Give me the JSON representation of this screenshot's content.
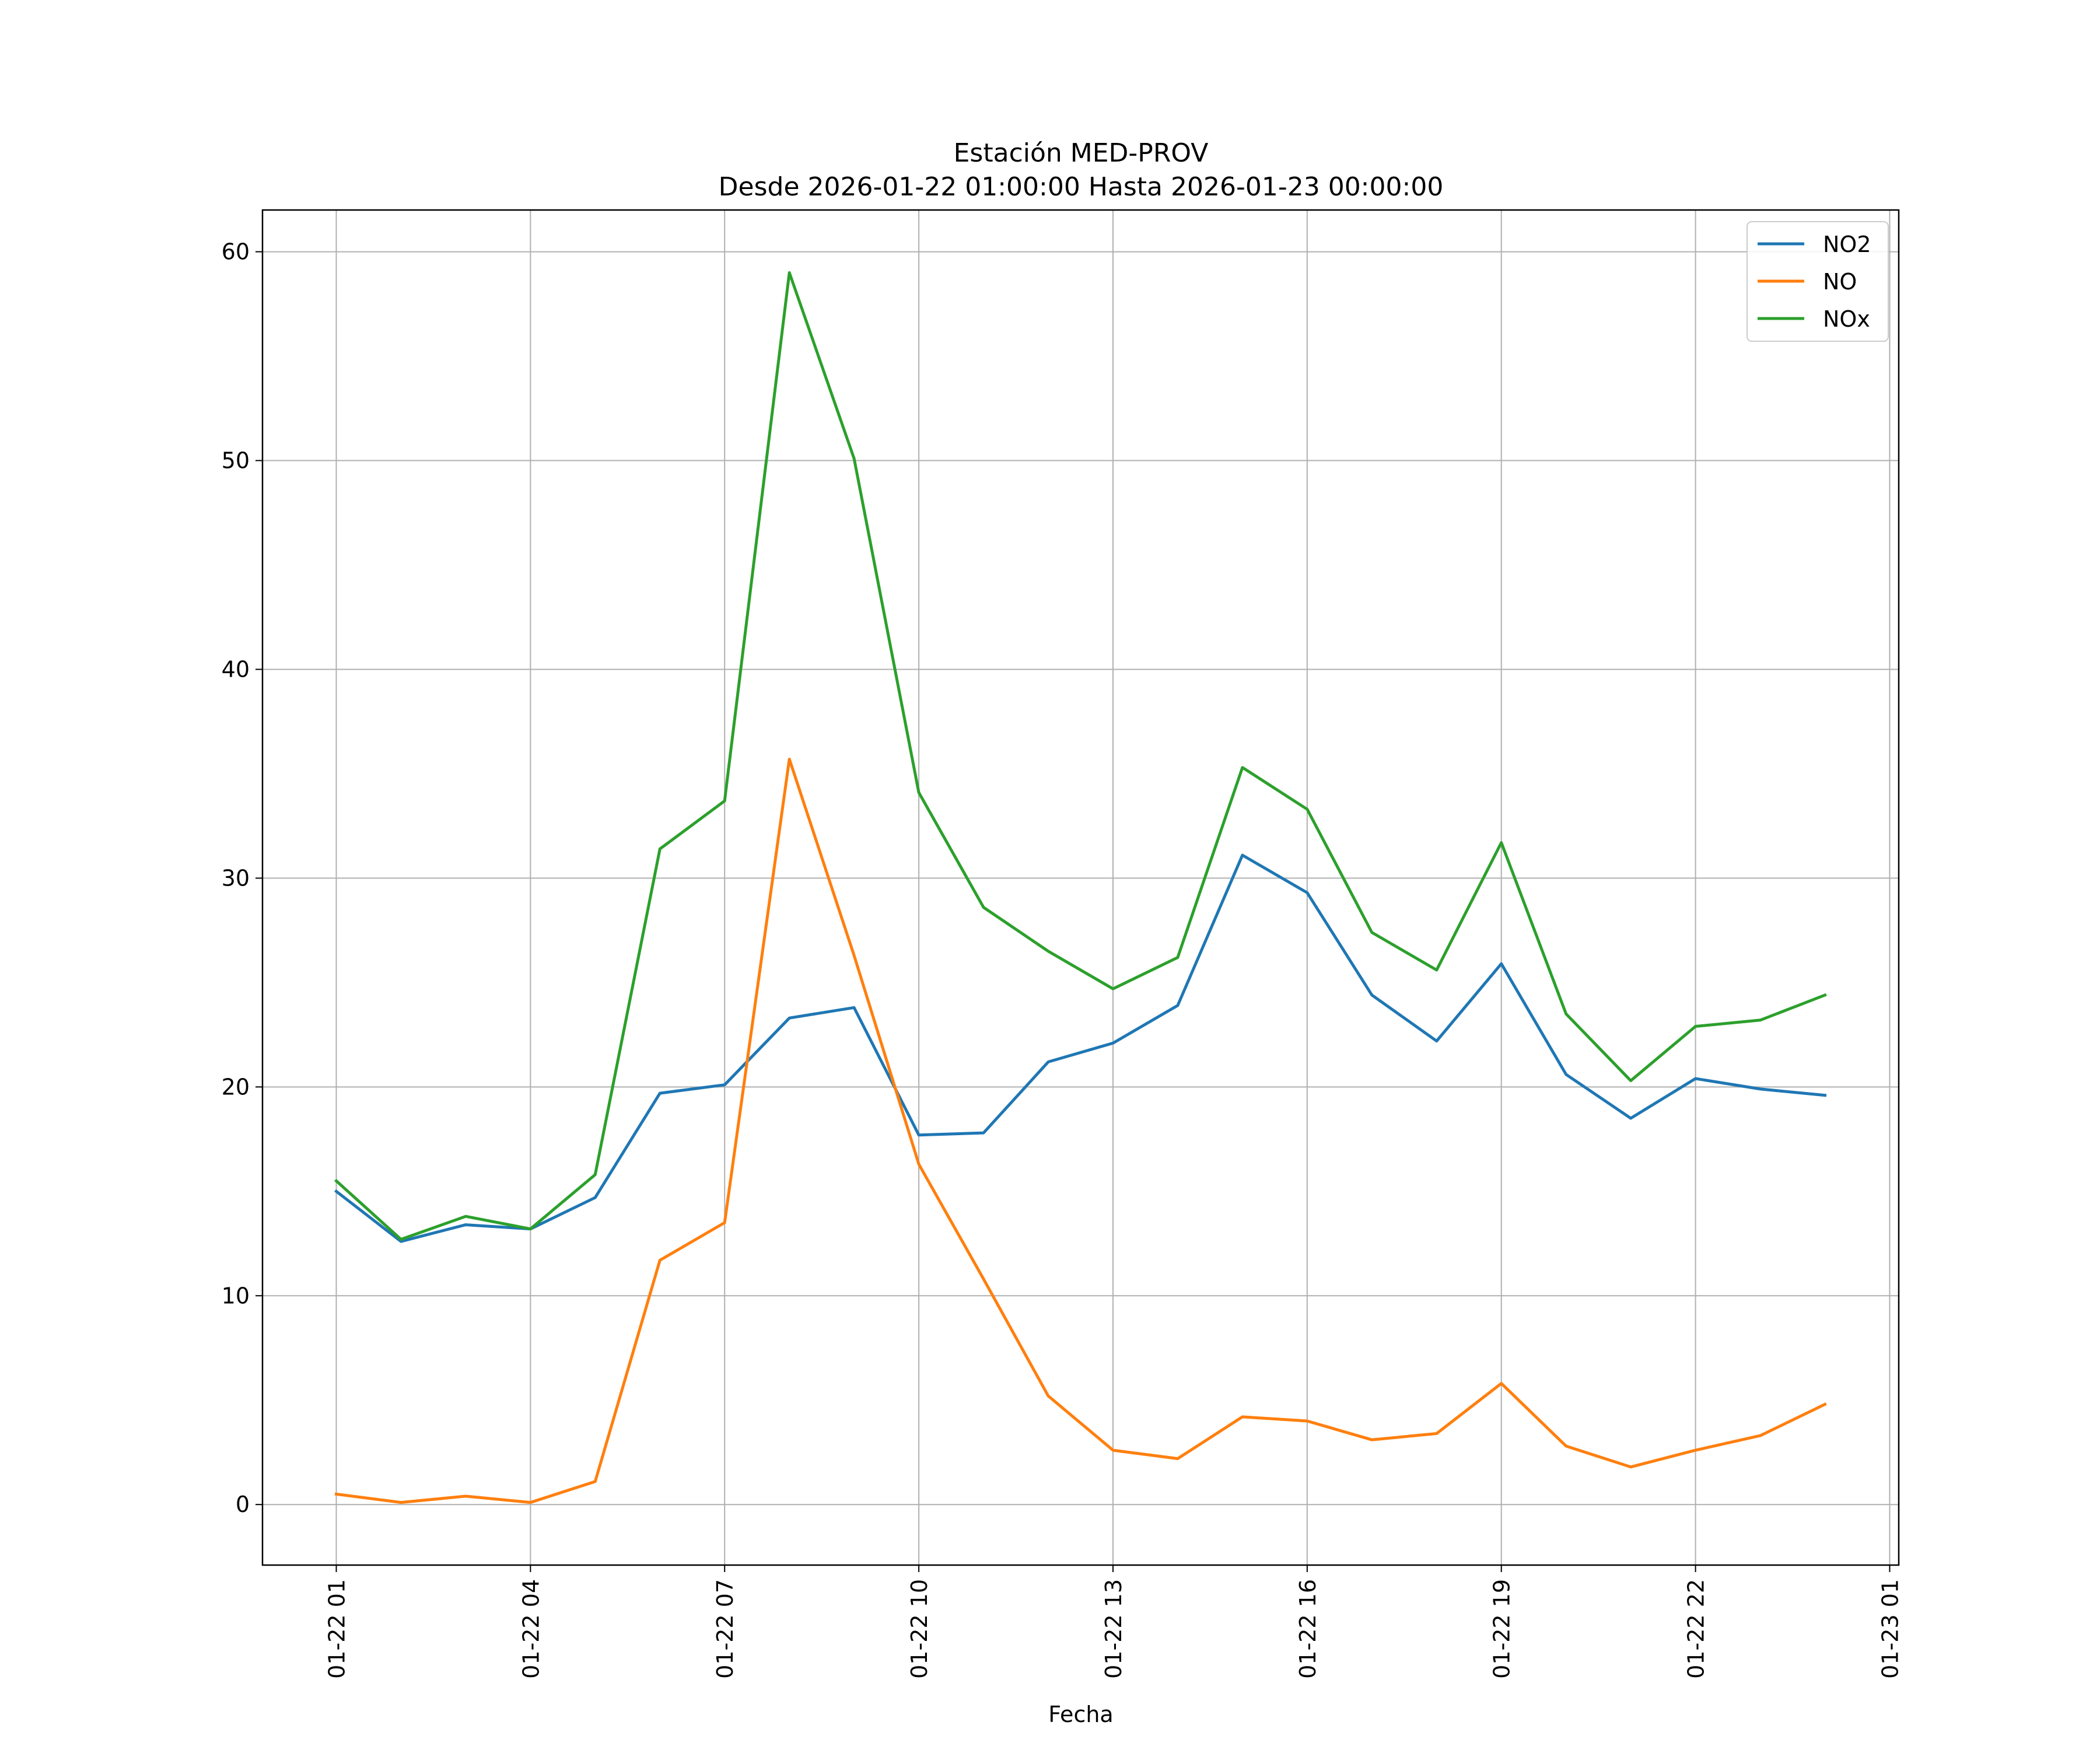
{
  "chart_data": {
    "type": "line",
    "title": "Estación MED-PROV",
    "subtitle": "Desde 2026-01-22 01:00:00 Hasta 2026-01-23 00:00:00",
    "xlabel": "Fecha",
    "ylabel": "",
    "x": [
      "2026-01-22 01:00",
      "2026-01-22 02:00",
      "2026-01-22 03:00",
      "2026-01-22 04:00",
      "2026-01-22 05:00",
      "2026-01-22 06:00",
      "2026-01-22 07:00",
      "2026-01-22 08:00",
      "2026-01-22 09:00",
      "2026-01-22 10:00",
      "2026-01-22 11:00",
      "2026-01-22 12:00",
      "2026-01-22 13:00",
      "2026-01-22 14:00",
      "2026-01-22 15:00",
      "2026-01-22 16:00",
      "2026-01-22 17:00",
      "2026-01-22 18:00",
      "2026-01-22 19:00",
      "2026-01-22 20:00",
      "2026-01-22 21:00",
      "2026-01-22 22:00",
      "2026-01-22 23:00",
      "2026-01-23 00:00"
    ],
    "x_tick_labels": [
      "01-22 01",
      "01-22 04",
      "01-22 07",
      "01-22 10",
      "01-22 13",
      "01-22 16",
      "01-22 19",
      "01-22 22",
      "01-23 01"
    ],
    "x_tick_hours": [
      1,
      4,
      7,
      10,
      13,
      16,
      19,
      22,
      25
    ],
    "xlim_hours": [
      -0.14,
      25.14
    ],
    "y_ticks": [
      0,
      10,
      20,
      30,
      40,
      50,
      60
    ],
    "ylim": [
      -2.9,
      62
    ],
    "grid": true,
    "legend_position": "top-right",
    "series": [
      {
        "name": "NO2",
        "color": "#1f77b4",
        "values": [
          15.0,
          12.6,
          13.4,
          13.2,
          14.7,
          19.7,
          20.1,
          23.3,
          23.8,
          17.7,
          17.8,
          21.2,
          22.1,
          23.9,
          31.1,
          29.3,
          24.4,
          22.2,
          25.9,
          20.6,
          18.5,
          20.4,
          19.9,
          19.6
        ]
      },
      {
        "name": "NO",
        "color": "#ff7f0e",
        "values": [
          0.5,
          0.1,
          0.4,
          0.1,
          1.1,
          11.7,
          13.5,
          35.7,
          26.3,
          16.3,
          10.8,
          5.2,
          2.6,
          2.2,
          4.2,
          4.0,
          3.1,
          3.4,
          5.8,
          2.8,
          1.8,
          2.6,
          3.3,
          4.8
        ]
      },
      {
        "name": "NOx",
        "color": "#2ca02c",
        "values": [
          15.5,
          12.7,
          13.8,
          13.2,
          15.8,
          31.4,
          33.7,
          59.0,
          50.1,
          34.1,
          28.6,
          26.5,
          24.7,
          26.2,
          35.3,
          33.3,
          27.4,
          25.6,
          31.7,
          23.5,
          20.3,
          22.9,
          23.2,
          24.4
        ]
      }
    ]
  }
}
